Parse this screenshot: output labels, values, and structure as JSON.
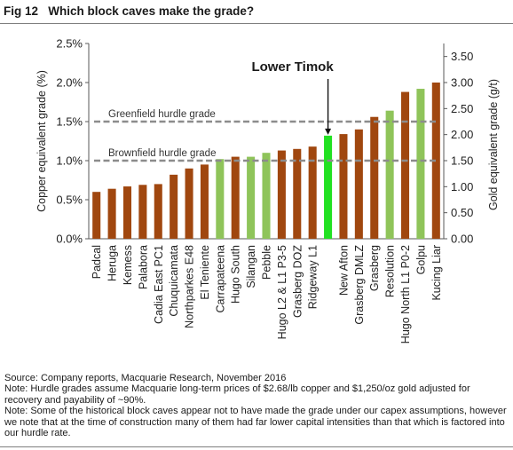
{
  "figure": {
    "number": "Fig 12",
    "title": "Which block caves make the grade?"
  },
  "notes": {
    "source": "Source: Company reports, Macquarie Research, November 2016",
    "note1": "Note: Hurdle grades assume Macquarie long-term prices of $2.68/lb copper and $1,250/oz gold adjusted for recovery and payability of ~90%.",
    "note2": "Note: Some of the historical block caves appear not to have made the grade under our capex assumptions, however we note that at the time of construction many of them had far lower capital intensities than that which is factored into our hurdle rate."
  },
  "chart_data": {
    "type": "bar",
    "ylabel": "Copper equivalent grade (%)",
    "y2label": "Gold equivalent grade (g/t)",
    "ylim": [
      0,
      2.5
    ],
    "y2lim": [
      0,
      3.75
    ],
    "yticks": [
      "0.0%",
      "0.5%",
      "1.0%",
      "1.5%",
      "2.0%",
      "2.5%"
    ],
    "yticks_values": [
      0,
      0.5,
      1.0,
      1.5,
      2.0,
      2.5
    ],
    "y2ticks": [
      "0.00",
      "0.50",
      "1.00",
      "1.50",
      "2.00",
      "2.50",
      "3.00",
      "3.50"
    ],
    "y2ticks_values": [
      0,
      0.5,
      1.0,
      1.5,
      2.0,
      2.5,
      3.0,
      3.5
    ],
    "categories": [
      "Padcal",
      "Heruga",
      "Kemess",
      "Palabora",
      "Cadia East PC1",
      "Chuquicamata",
      "Northparkes E48",
      "El Teniente",
      "Carrapateena",
      "Hugo South",
      "Silangan",
      "Pebble",
      "Hugo L2 & L1 P3-5",
      "Grasberg DOZ",
      "Ridgeway L1",
      "Lower Timok",
      "New Afton",
      "Grasberg DMLZ",
      "Grasberg",
      "Resolution",
      "Hugo North L1 P0-2",
      "Golpu",
      "Kucing Liar"
    ],
    "tick_labels": [
      "Padcal",
      "Heruga",
      "Kemess",
      "Palabora",
      "Cadia East PC1",
      "Chuquicamata",
      "Northparkes E48",
      "El Teniente",
      "Carrapateena",
      "Hugo South",
      "Silangan",
      "Pebble",
      "Hugo L2 & L1 P3-5",
      "Grasberg DOZ",
      "Ridgeway L1",
      "",
      "New Afton",
      "Grasberg DMLZ",
      "Grasberg",
      "Resolution",
      "Hugo North L1 P0-2",
      "Golpu",
      "Kucing Liar"
    ],
    "values": [
      0.6,
      0.64,
      0.67,
      0.69,
      0.7,
      0.82,
      0.9,
      0.95,
      1.02,
      1.05,
      1.05,
      1.1,
      1.13,
      1.15,
      1.18,
      1.32,
      1.34,
      1.4,
      1.56,
      1.64,
      1.88,
      1.92,
      2.0
    ],
    "bar_types": [
      "brownfield",
      "brownfield",
      "brownfield",
      "brownfield",
      "brownfield",
      "brownfield",
      "brownfield",
      "brownfield",
      "greenfield",
      "brownfield",
      "greenfield",
      "greenfield",
      "brownfield",
      "brownfield",
      "brownfield",
      "highlight",
      "brownfield",
      "brownfield",
      "brownfield",
      "greenfield",
      "brownfield",
      "greenfield",
      "brownfield"
    ],
    "colors": {
      "brownfield": "#a0470f",
      "greenfield": "#8fc45a",
      "highlight": "#22e122",
      "hurdle": "#8c8c8c",
      "axis": "#595959"
    },
    "hurdles": [
      {
        "label": "Greenfield hurdle grade",
        "value": 1.5
      },
      {
        "label": "Brownfield hurdle grade",
        "value": 1.0
      }
    ],
    "annotation": {
      "label": "Lower Timok",
      "category": "Lower Timok"
    },
    "grid": false
  }
}
